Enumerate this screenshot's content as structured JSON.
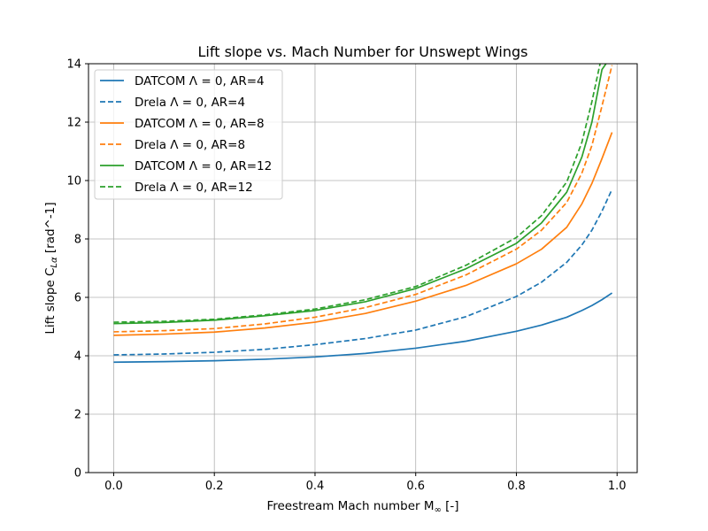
{
  "chart_data": {
    "type": "line",
    "title": "Lift slope vs. Mach Number for Unswept Wings",
    "xlabel": "Freestream Mach number M",
    "xlabel_sub": "∞",
    "xlabel_unit": " [-]",
    "ylabel": "Lift slope C",
    "ylabel_sub": "Lα",
    "ylabel_unit": " [rad^-1]",
    "xlim": [
      -0.05,
      1.04
    ],
    "ylim": [
      0,
      14
    ],
    "xticks": [
      0.0,
      0.2,
      0.4,
      0.6,
      0.8,
      1.0
    ],
    "xtick_labels": [
      "0.0",
      "0.2",
      "0.4",
      "0.6",
      "0.8",
      "1.0"
    ],
    "yticks": [
      0,
      2,
      4,
      6,
      8,
      10,
      12,
      14
    ],
    "ytick_labels": [
      "0",
      "2",
      "4",
      "6",
      "8",
      "10",
      "12",
      "14"
    ],
    "grid": true,
    "legend_position": "top-left",
    "x": [
      0.0,
      0.1,
      0.2,
      0.3,
      0.4,
      0.5,
      0.6,
      0.7,
      0.8,
      0.85,
      0.9,
      0.93,
      0.95,
      0.97,
      0.99
    ],
    "series": [
      {
        "name": "DATCOM Λ = 0, AR=4",
        "color": "#1f77b4",
        "dash": "solid",
        "values": [
          3.78,
          3.8,
          3.83,
          3.88,
          3.96,
          4.08,
          4.26,
          4.5,
          4.84,
          5.05,
          5.32,
          5.55,
          5.72,
          5.92,
          6.15
        ]
      },
      {
        "name": "Drela Λ = 0, AR=4",
        "color": "#1f77b4",
        "dash": "dashed",
        "values": [
          4.03,
          4.06,
          4.12,
          4.22,
          4.38,
          4.59,
          4.88,
          5.34,
          6.03,
          6.52,
          7.2,
          7.79,
          8.3,
          8.95,
          9.7
        ]
      },
      {
        "name": "DATCOM Λ = 0, AR=8",
        "color": "#ff7f0e",
        "dash": "solid",
        "values": [
          4.7,
          4.74,
          4.81,
          4.95,
          5.15,
          5.45,
          5.87,
          6.41,
          7.15,
          7.65,
          8.4,
          9.2,
          9.9,
          10.75,
          11.65
        ]
      },
      {
        "name": "Drela Λ = 0, AR=8",
        "color": "#ff7f0e",
        "dash": "dashed",
        "values": [
          4.82,
          4.86,
          4.93,
          5.09,
          5.32,
          5.65,
          6.1,
          6.77,
          7.65,
          8.3,
          9.25,
          10.25,
          11.2,
          12.55,
          13.95
        ]
      },
      {
        "name": "DATCOM Λ = 0, AR=12",
        "color": "#2ca02c",
        "dash": "solid",
        "values": [
          5.1,
          5.14,
          5.22,
          5.37,
          5.55,
          5.85,
          6.3,
          6.98,
          7.85,
          8.55,
          9.6,
          10.8,
          12.0,
          13.8,
          14.3
        ]
      },
      {
        "name": "Drela Λ = 0, AR=12",
        "color": "#2ca02c",
        "dash": "dashed",
        "values": [
          5.15,
          5.18,
          5.25,
          5.4,
          5.6,
          5.92,
          6.37,
          7.1,
          8.05,
          8.8,
          9.95,
          11.3,
          12.7,
          14.3,
          14.6
        ]
      }
    ]
  }
}
